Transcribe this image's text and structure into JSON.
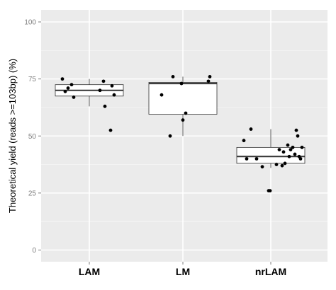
{
  "chart_data": {
    "type": "boxplot",
    "title": "",
    "xlabel": "",
    "ylabel": "Theoretical yield (reads >=103bp) (%)",
    "ylim": [
      0,
      100
    ],
    "yticks": [
      0,
      25,
      50,
      75,
      100
    ],
    "y_tick_labels": [
      "0",
      "25",
      "50",
      "75",
      "100"
    ],
    "categories": [
      "LAM",
      "LM",
      "nrLAM"
    ],
    "grid": true,
    "background_color": "#ebebeb",
    "grid_color": "#ffffff",
    "point_color": "#000000",
    "boxes": [
      {
        "category": "LAM",
        "whisker_low": 63,
        "q1": 67.5,
        "median": 70,
        "q3": 72.5,
        "whisker_high": 75,
        "points": [
          [
            -0.38,
            75
          ],
          [
            -0.34,
            69.5
          ],
          [
            -0.3,
            71
          ],
          [
            -0.25,
            72.5
          ],
          [
            -0.22,
            67
          ],
          [
            0.2,
            74
          ],
          [
            0.22,
            63
          ],
          [
            0.15,
            70
          ],
          [
            0.32,
            72
          ],
          [
            0.35,
            68
          ],
          [
            0.3,
            52.5
          ]
        ]
      },
      {
        "category": "LM",
        "whisker_low": 50,
        "q1": 59.5,
        "median": 73,
        "q3": 73.5,
        "whisker_high": 76,
        "points": [
          [
            -0.3,
            68
          ],
          [
            -0.18,
            50
          ],
          [
            -0.14,
            76
          ],
          [
            -0.02,
            73
          ],
          [
            0.0,
            57
          ],
          [
            0.04,
            60
          ],
          [
            0.36,
            74
          ],
          [
            0.38,
            76
          ]
        ]
      },
      {
        "category": "nrLAM",
        "whisker_low": 36,
        "q1": 38,
        "median": 41,
        "q3": 45,
        "whisker_high": 53,
        "points": [
          [
            -0.38,
            48
          ],
          [
            -0.34,
            40
          ],
          [
            -0.28,
            53
          ],
          [
            -0.2,
            40
          ],
          [
            -0.12,
            36.5
          ],
          [
            -0.03,
            26
          ],
          [
            -0.01,
            26
          ],
          [
            0.16,
            37
          ],
          [
            0.18,
            43
          ],
          [
            0.2,
            38
          ],
          [
            0.24,
            46
          ],
          [
            0.26,
            41
          ],
          [
            0.28,
            44
          ],
          [
            0.31,
            45
          ],
          [
            0.34,
            42
          ],
          [
            0.36,
            52.5
          ],
          [
            0.38,
            50
          ],
          [
            0.4,
            41
          ],
          [
            0.42,
            40
          ],
          [
            0.44,
            45
          ],
          [
            0.12,
            44
          ],
          [
            0.08,
            37.5
          ]
        ]
      }
    ]
  }
}
